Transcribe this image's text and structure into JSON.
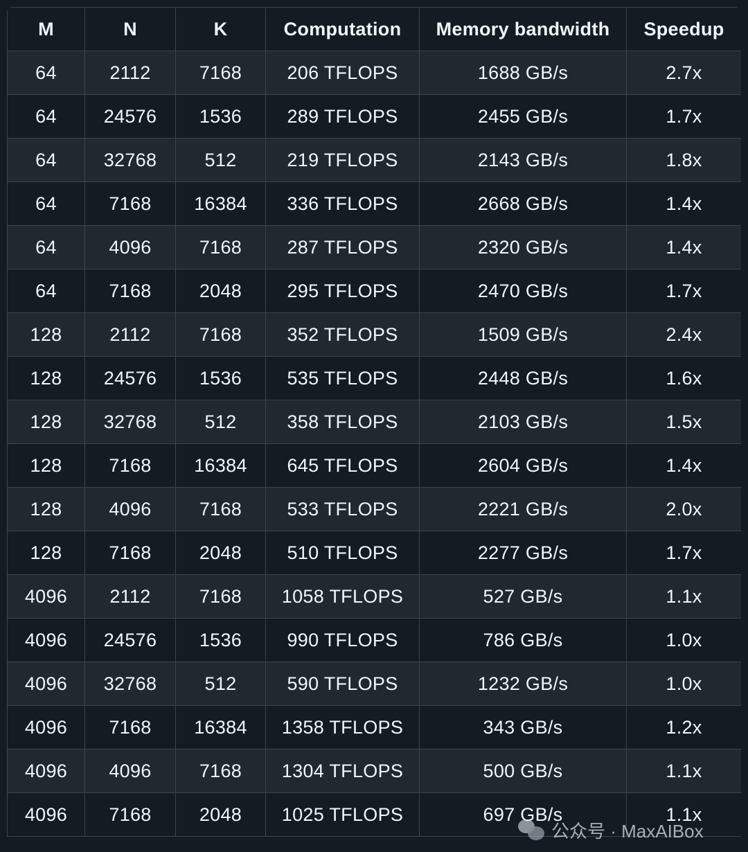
{
  "table": {
    "headers": [
      "M",
      "N",
      "K",
      "Computation",
      "Memory bandwidth",
      "Speedup"
    ],
    "rows": [
      [
        "64",
        "2112",
        "7168",
        "206 TFLOPS",
        "1688 GB/s",
        "2.7x"
      ],
      [
        "64",
        "24576",
        "1536",
        "289 TFLOPS",
        "2455 GB/s",
        "1.7x"
      ],
      [
        "64",
        "32768",
        "512",
        "219 TFLOPS",
        "2143 GB/s",
        "1.8x"
      ],
      [
        "64",
        "7168",
        "16384",
        "336 TFLOPS",
        "2668 GB/s",
        "1.4x"
      ],
      [
        "64",
        "4096",
        "7168",
        "287 TFLOPS",
        "2320 GB/s",
        "1.4x"
      ],
      [
        "64",
        "7168",
        "2048",
        "295 TFLOPS",
        "2470 GB/s",
        "1.7x"
      ],
      [
        "128",
        "2112",
        "7168",
        "352 TFLOPS",
        "1509 GB/s",
        "2.4x"
      ],
      [
        "128",
        "24576",
        "1536",
        "535 TFLOPS",
        "2448 GB/s",
        "1.6x"
      ],
      [
        "128",
        "32768",
        "512",
        "358 TFLOPS",
        "2103 GB/s",
        "1.5x"
      ],
      [
        "128",
        "7168",
        "16384",
        "645 TFLOPS",
        "2604 GB/s",
        "1.4x"
      ],
      [
        "128",
        "4096",
        "7168",
        "533 TFLOPS",
        "2221 GB/s",
        "2.0x"
      ],
      [
        "128",
        "7168",
        "2048",
        "510 TFLOPS",
        "2277 GB/s",
        "1.7x"
      ],
      [
        "4096",
        "2112",
        "7168",
        "1058 TFLOPS",
        "527 GB/s",
        "1.1x"
      ],
      [
        "4096",
        "24576",
        "1536",
        "990 TFLOPS",
        "786 GB/s",
        "1.0x"
      ],
      [
        "4096",
        "32768",
        "512",
        "590 TFLOPS",
        "1232 GB/s",
        "1.0x"
      ],
      [
        "4096",
        "7168",
        "16384",
        "1358 TFLOPS",
        "343 GB/s",
        "1.2x"
      ],
      [
        "4096",
        "4096",
        "7168",
        "1304 TFLOPS",
        "500 GB/s",
        "1.1x"
      ],
      [
        "4096",
        "7168",
        "2048",
        "1025 TFLOPS",
        "697 GB/s",
        "1.1x"
      ]
    ]
  },
  "watermark": {
    "icon": "wechat-icon",
    "text": "公众号 · MaxAIBox"
  },
  "colors": {
    "page_bg": "#151b23",
    "row_alt_bg": "#212830",
    "border": "#3d444d",
    "text": "#f0f6fc"
  }
}
